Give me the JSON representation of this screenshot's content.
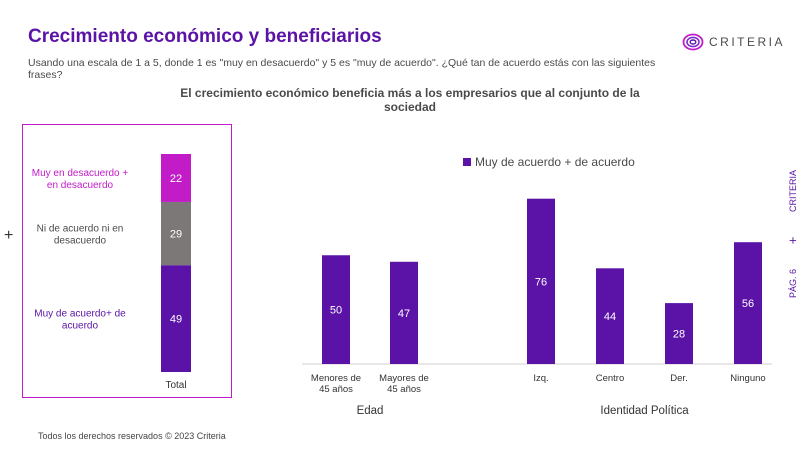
{
  "header": {
    "title": "Crecimiento económico y beneficiarios",
    "subtitle": "Usando una escala de 1 a 5, donde 1 es \"muy en desacuerdo\" y 5 es \"muy de acuerdo\". ¿Qué tan de acuerdo estás con las siguientes frases?",
    "brand": "CRITERIA"
  },
  "chart_title": "El crecimiento económico beneficia más a los empresarios que al conjunto de la sociedad",
  "side_label": {
    "page": "PÁG. 6",
    "brand": "CRITERIA"
  },
  "footer": "Todos los derechos reservados © 2023 Criteria",
  "colors": {
    "accent": "#5a13a6",
    "magenta": "#c21cc8",
    "gray": "#7d7878"
  },
  "chart_data": [
    {
      "type": "bar",
      "stacked": true,
      "categories": [
        "Total"
      ],
      "series": [
        {
          "name": "Muy de acuerdo+ de acuerdo",
          "values": [
            49
          ],
          "color": "#5a13a6"
        },
        {
          "name": "Ni de acuerdo ni en desacuerdo",
          "values": [
            29
          ],
          "color": "#7d7878"
        },
        {
          "name": "Muy en desacuerdo + en desacuerdo",
          "values": [
            22
          ],
          "color": "#c21cc8"
        }
      ]
    },
    {
      "type": "bar",
      "legend": "Muy de acuerdo + de acuerdo",
      "groups": [
        {
          "label": "Edad",
          "categories": [
            "Menores de 45 años",
            "Mayores de 45 años"
          ],
          "values": [
            50,
            47
          ]
        },
        {
          "label": "Identidad Política",
          "categories": [
            "Izq.",
            "Centro",
            "Der.",
            "Ninguno"
          ],
          "values": [
            76,
            44,
            28,
            56
          ]
        }
      ],
      "ylim": [
        0,
        80
      ]
    }
  ]
}
